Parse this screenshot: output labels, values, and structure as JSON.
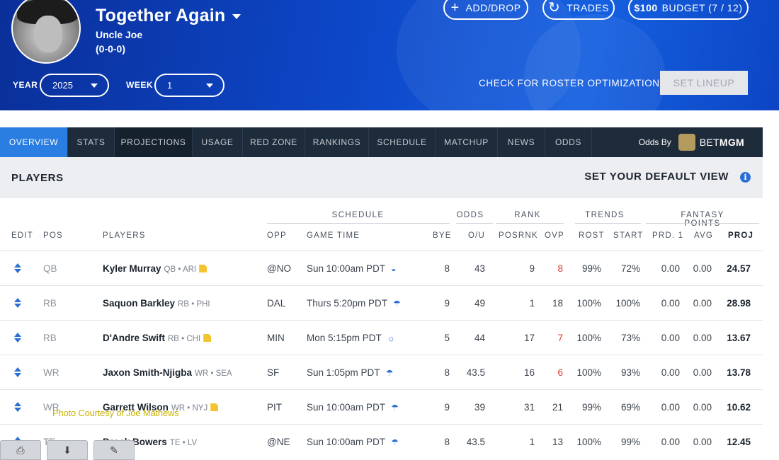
{
  "header": {
    "team_name": "Together Again",
    "owner": "Uncle Joe",
    "record": "(0-0-0)",
    "add_drop_label": "ADD/DROP",
    "trades_label": "TRADES",
    "budget_amount": "$100",
    "budget_label": "BUDGET (7 / 12)",
    "year_label": "YEAR",
    "year_value": "2025",
    "week_label": "WEEK",
    "week_value": "1",
    "check_optimizations": "CHECK FOR ROSTER OPTIMIZATIONS",
    "set_lineup": "SET LINEUP",
    "accent_color": "#0d47c8"
  },
  "tabs": [
    {
      "label": "OVERVIEW",
      "active": true
    },
    {
      "label": "STATS"
    },
    {
      "label": "PROJECTIONS"
    },
    {
      "label": "USAGE"
    },
    {
      "label": "RED ZONE"
    },
    {
      "label": "RANKINGS"
    },
    {
      "label": "SCHEDULE"
    },
    {
      "label": "MATCHUP"
    },
    {
      "label": "NEWS"
    },
    {
      "label": "ODDS"
    }
  ],
  "odds_by": {
    "label": "Odds By",
    "brand_a": "BET",
    "brand_b": "MGM"
  },
  "players_section": {
    "title": "PLAYERS",
    "default_view": "SET YOUR DEFAULT VIEW"
  },
  "groups": {
    "schedule": "SCHEDULE",
    "odds": "ODDS",
    "rank": "RANK",
    "trends": "TRENDS",
    "fantasy": "FANTASY POINTS"
  },
  "columns": {
    "edit": "EDIT",
    "pos": "POS",
    "players": "PLAYERS",
    "opp": "OPP",
    "game_time": "GAME TIME",
    "bye": "BYE",
    "ou": "O/U",
    "posrnk": "POSRNK",
    "ovp": "OVP",
    "rost": "ROST",
    "start": "START",
    "prd1": "PRD. 1",
    "avg": "AVG",
    "proj": "PROJ"
  },
  "rows": [
    {
      "pos": "QB",
      "name": "Kyler Murray",
      "tag": "QB • ARI",
      "note": true,
      "opp": "@NO",
      "time": "Sun 10:00am PDT",
      "weather": "dome-icon",
      "bye": "8",
      "ou": "43",
      "posrnk": "9",
      "ovp": "8",
      "ovp_red": true,
      "rost": "99%",
      "start": "72%",
      "prd1": "0.00",
      "avg": "0.00",
      "proj": "24.57"
    },
    {
      "pos": "RB",
      "name": "Saquon Barkley",
      "tag": "RB • PHI",
      "note": false,
      "opp": "DAL",
      "time": "Thurs 5:20pm PDT",
      "weather": "rain-icon",
      "bye": "9",
      "ou": "49",
      "posrnk": "1",
      "ovp": "18",
      "ovp_red": false,
      "rost": "100%",
      "start": "100%",
      "prd1": "0.00",
      "avg": "0.00",
      "proj": "28.98"
    },
    {
      "pos": "RB",
      "name": "D'Andre Swift",
      "tag": "RB • CHI",
      "note": true,
      "opp": "MIN",
      "time": "Mon 5:15pm PDT",
      "weather": "partly-sunny-icon",
      "bye": "5",
      "ou": "44",
      "posrnk": "17",
      "ovp": "7",
      "ovp_red": true,
      "rost": "100%",
      "start": "73%",
      "prd1": "0.00",
      "avg": "0.00",
      "proj": "13.67"
    },
    {
      "pos": "WR",
      "name": "Jaxon Smith-Njigba",
      "tag": "WR • SEA",
      "note": false,
      "opp": "SF",
      "time": "Sun 1:05pm PDT",
      "weather": "rain-icon",
      "bye": "8",
      "ou": "43.5",
      "posrnk": "16",
      "ovp": "6",
      "ovp_red": true,
      "rost": "100%",
      "start": "93%",
      "prd1": "0.00",
      "avg": "0.00",
      "proj": "13.78"
    },
    {
      "pos": "WR",
      "name": "Garrett Wilson",
      "tag": "WR • NYJ",
      "note": true,
      "opp": "PIT",
      "time": "Sun 10:00am PDT",
      "weather": "rain-icon",
      "bye": "9",
      "ou": "39",
      "posrnk": "31",
      "ovp": "21",
      "ovp_red": false,
      "rost": "99%",
      "start": "69%",
      "prd1": "0.00",
      "avg": "0.00",
      "proj": "10.62"
    },
    {
      "pos": "TE",
      "name": "Brock Bowers",
      "tag": "TE • LV",
      "note": false,
      "opp": "@NE",
      "time": "Sun 10:00am PDT",
      "weather": "rain-icon",
      "bye": "8",
      "ou": "43.5",
      "posrnk": "1",
      "ovp": "13",
      "ovp_red": false,
      "rost": "100%",
      "start": "99%",
      "prd1": "0.00",
      "avg": "0.00",
      "proj": "12.45"
    }
  ],
  "watermark": "Photo Courtesy of Joe Mathews"
}
